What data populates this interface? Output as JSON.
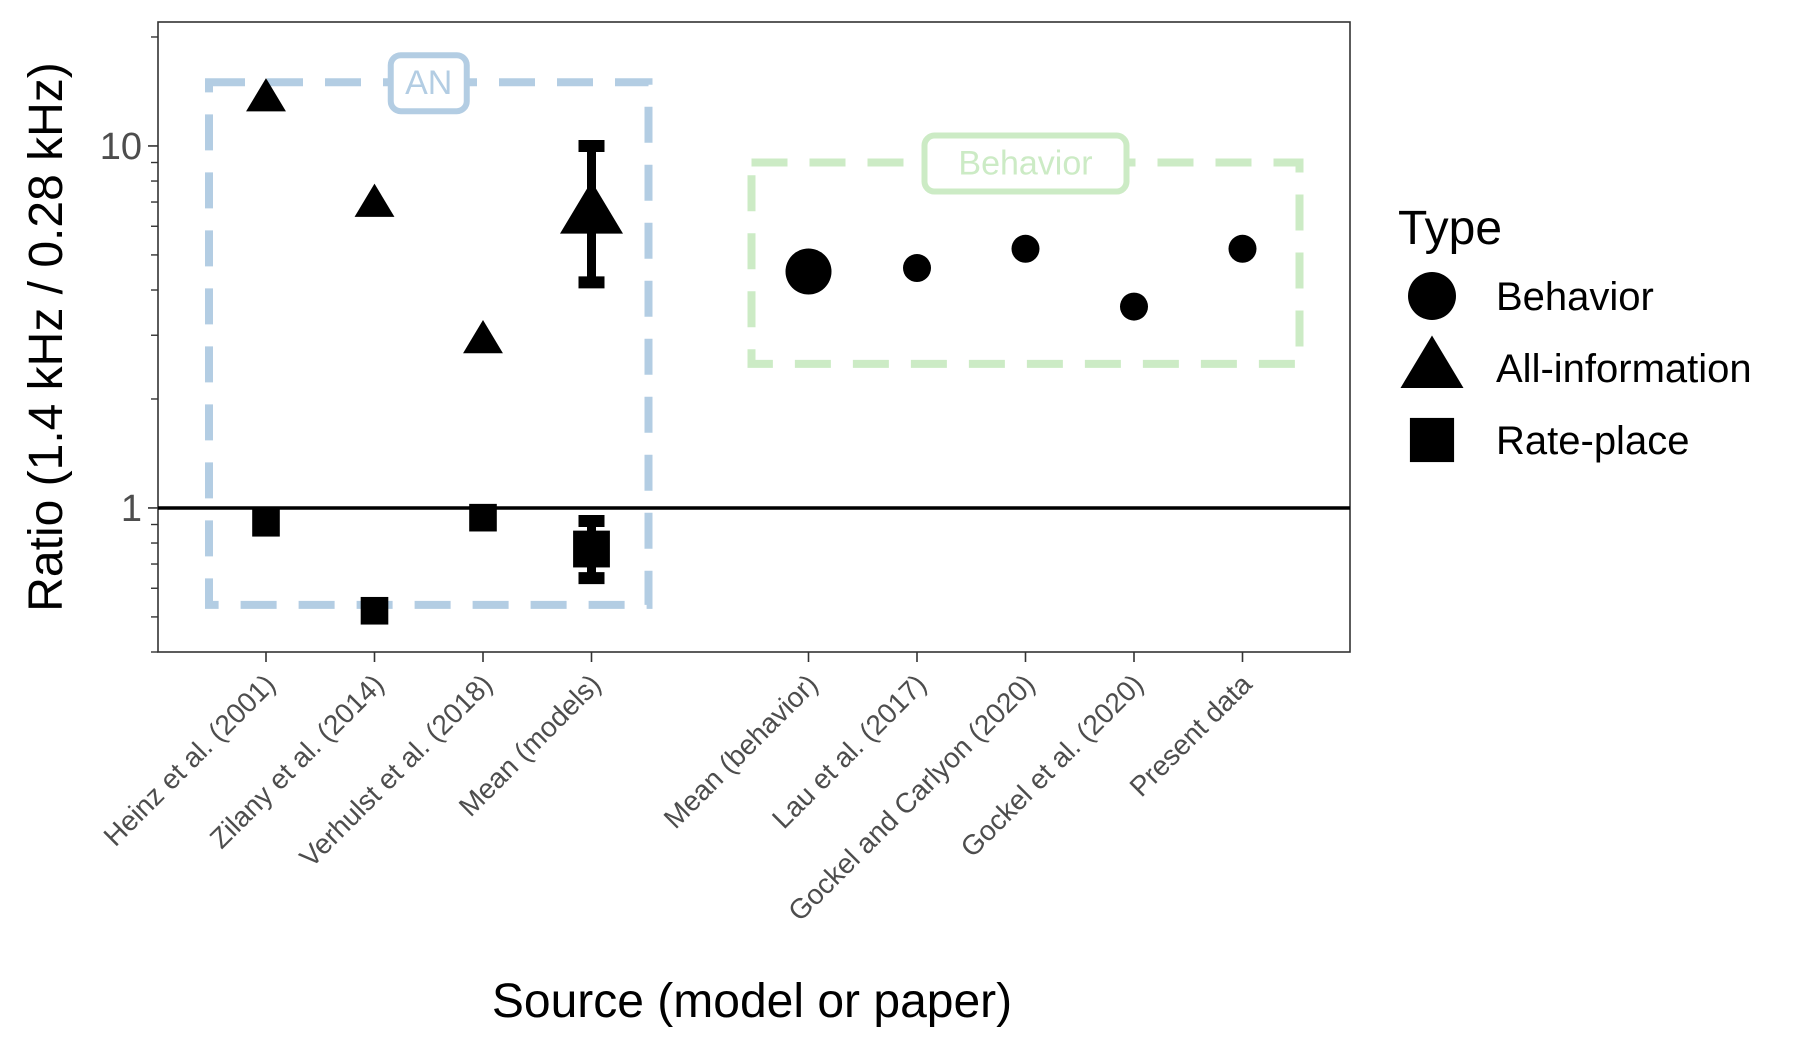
{
  "chart_data": {
    "type": "scatter",
    "title": "",
    "xlabel": "Source (model or paper)",
    "ylabel": "Ratio (1.4 kHz / 0.28 kHz)",
    "y_scale": "log10",
    "ylim": [
      0.4,
      22
    ],
    "yticks": [
      1,
      10
    ],
    "ytick_labels": [
      "1",
      "10"
    ],
    "grid": false,
    "reference_line_y": 1,
    "categories": [
      "Heinz et al. (2001)",
      "Zilany et al. (2014)",
      "Verhulst et al. (2018)",
      "Mean (models)",
      "",
      "Mean (behavior)",
      "Lau et al. (2017)",
      "Gockel and Carlyon (2020)",
      "Gockel et al. (2020)",
      "Present data"
    ],
    "series": [
      {
        "name": "Behavior",
        "shape": "circle",
        "points": [
          {
            "x": "Mean (behavior)",
            "y": 4.5,
            "large": true
          },
          {
            "x": "Lau et al. (2017)",
            "y": 4.6
          },
          {
            "x": "Gockel and Carlyon (2020)",
            "y": 5.2
          },
          {
            "x": "Gockel et al. (2020)",
            "y": 3.6
          },
          {
            "x": "Present data",
            "y": 5.2
          }
        ]
      },
      {
        "name": "All-information",
        "shape": "triangle",
        "points": [
          {
            "x": "Heinz et al. (2001)",
            "y": 13.5
          },
          {
            "x": "Zilany et al. (2014)",
            "y": 6.9
          },
          {
            "x": "Verhulst et al. (2018)",
            "y": 2.9
          },
          {
            "x": "Mean (models)",
            "y": 6.5,
            "large": true,
            "err_low": 4.2,
            "err_high": 10
          }
        ]
      },
      {
        "name": "Rate-place",
        "shape": "square",
        "points": [
          {
            "x": "Heinz et al. (2001)",
            "y": 0.91
          },
          {
            "x": "Zilany et al. (2014)",
            "y": 0.52
          },
          {
            "x": "Verhulst et al. (2018)",
            "y": 0.94
          },
          {
            "x": "Mean (models)",
            "y": 0.77,
            "large": true,
            "err_low": 0.64,
            "err_high": 0.92
          }
        ]
      }
    ],
    "annotations": [
      {
        "label": "AN",
        "color": "#b3cde3",
        "groups": [
          "Heinz et al. (2001)",
          "Zilany et al. (2014)",
          "Verhulst et al. (2018)",
          "Mean (models)"
        ],
        "y_range": [
          0.54,
          15
        ]
      },
      {
        "label": "Behavior",
        "color": "#ccebc5",
        "groups": [
          "Mean (behavior)",
          "Lau et al. (2017)",
          "Gockel and Carlyon (2020)",
          "Gockel et al. (2020)",
          "Present data"
        ],
        "y_range": [
          2.5,
          9
        ]
      }
    ],
    "legend": {
      "title": "Type",
      "position": "right",
      "entries": [
        {
          "label": "Behavior",
          "shape": "circle"
        },
        {
          "label": "All-information",
          "shape": "triangle"
        },
        {
          "label": "Rate-place",
          "shape": "square"
        }
      ]
    },
    "colors": {
      "marker": "#000000",
      "axis": "#333333",
      "tick_label": "#4d4d4d"
    }
  }
}
